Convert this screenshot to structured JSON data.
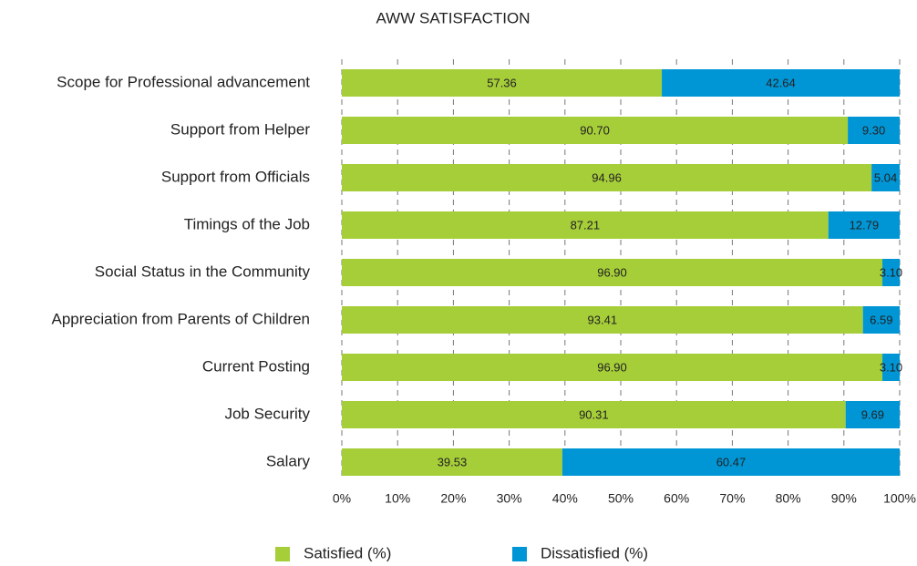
{
  "chart_data": {
    "type": "bar",
    "orientation": "horizontal",
    "stacked": true,
    "title": "AWW SATISFACTION",
    "categories": [
      "Scope for Professional advancement",
      "Support from Helper",
      "Support from Officials",
      "Timings of the Job",
      "Social Status in the Community",
      "Appreciation from Parents of Children",
      "Current Posting",
      "Job Security",
      "Salary"
    ],
    "series": [
      {
        "name": "Satisfied (%)",
        "color": "#a6ce39",
        "values": [
          57.36,
          90.7,
          94.96,
          87.21,
          96.9,
          93.41,
          96.9,
          90.31,
          39.53
        ],
        "value_labels": [
          "57.36",
          "90.70",
          "94.96",
          "87.21",
          "96.90",
          "93.41",
          "96.90",
          "90.31",
          "39.53"
        ]
      },
      {
        "name": "Dissatisfied (%)",
        "color": "#0096d6",
        "values": [
          42.64,
          9.3,
          5.04,
          12.79,
          3.1,
          6.59,
          3.1,
          9.69,
          60.47
        ],
        "value_labels": [
          "42.64",
          "9.30",
          "5.04",
          "12.79",
          "3.10",
          "6.59",
          "3.10",
          "9.69",
          "60.47"
        ]
      }
    ],
    "xlim": [
      0,
      100
    ],
    "xticks": [
      {
        "value": 0,
        "label": "0%"
      },
      {
        "value": 10,
        "label": "10%"
      },
      {
        "value": 20,
        "label": "20%"
      },
      {
        "value": 30,
        "label": "30%"
      },
      {
        "value": 40,
        "label": "40%"
      },
      {
        "value": 50,
        "label": "50%"
      },
      {
        "value": 60,
        "label": "60%"
      },
      {
        "value": 70,
        "label": "70%"
      },
      {
        "value": 80,
        "label": "80%"
      },
      {
        "value": 90,
        "label": "90%"
      },
      {
        "value": 100,
        "label": "100%"
      }
    ],
    "grid": true,
    "legend": "bottom"
  }
}
